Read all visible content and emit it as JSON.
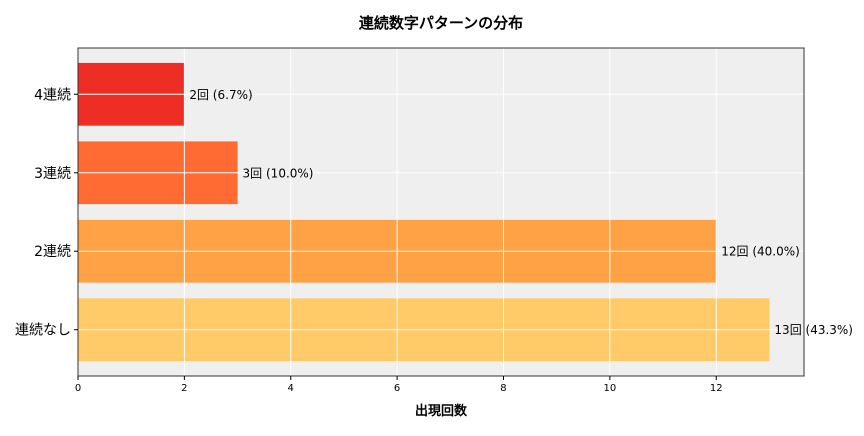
{
  "chart_data": {
    "type": "bar",
    "orientation": "horizontal",
    "title": "連続数字パターンの分布",
    "xlabel": "出現回数",
    "ylabel": "",
    "categories": [
      "連続なし",
      "2連続",
      "3連続",
      "4連続"
    ],
    "values": [
      13,
      12,
      3,
      2
    ],
    "data_labels": [
      "13回 (43.3%)",
      "12回 (40.0%)",
      "3回 (10.0%)",
      "2回 (6.7%)"
    ],
    "colors": [
      "#FFCA67",
      "#FFA245",
      "#FF6B33",
      "#EE2E24"
    ],
    "xlim": [
      0,
      13.65
    ],
    "xticks": [
      0,
      2,
      4,
      6,
      8,
      10,
      12
    ],
    "grid": true,
    "background": "#EFEFEF"
  }
}
